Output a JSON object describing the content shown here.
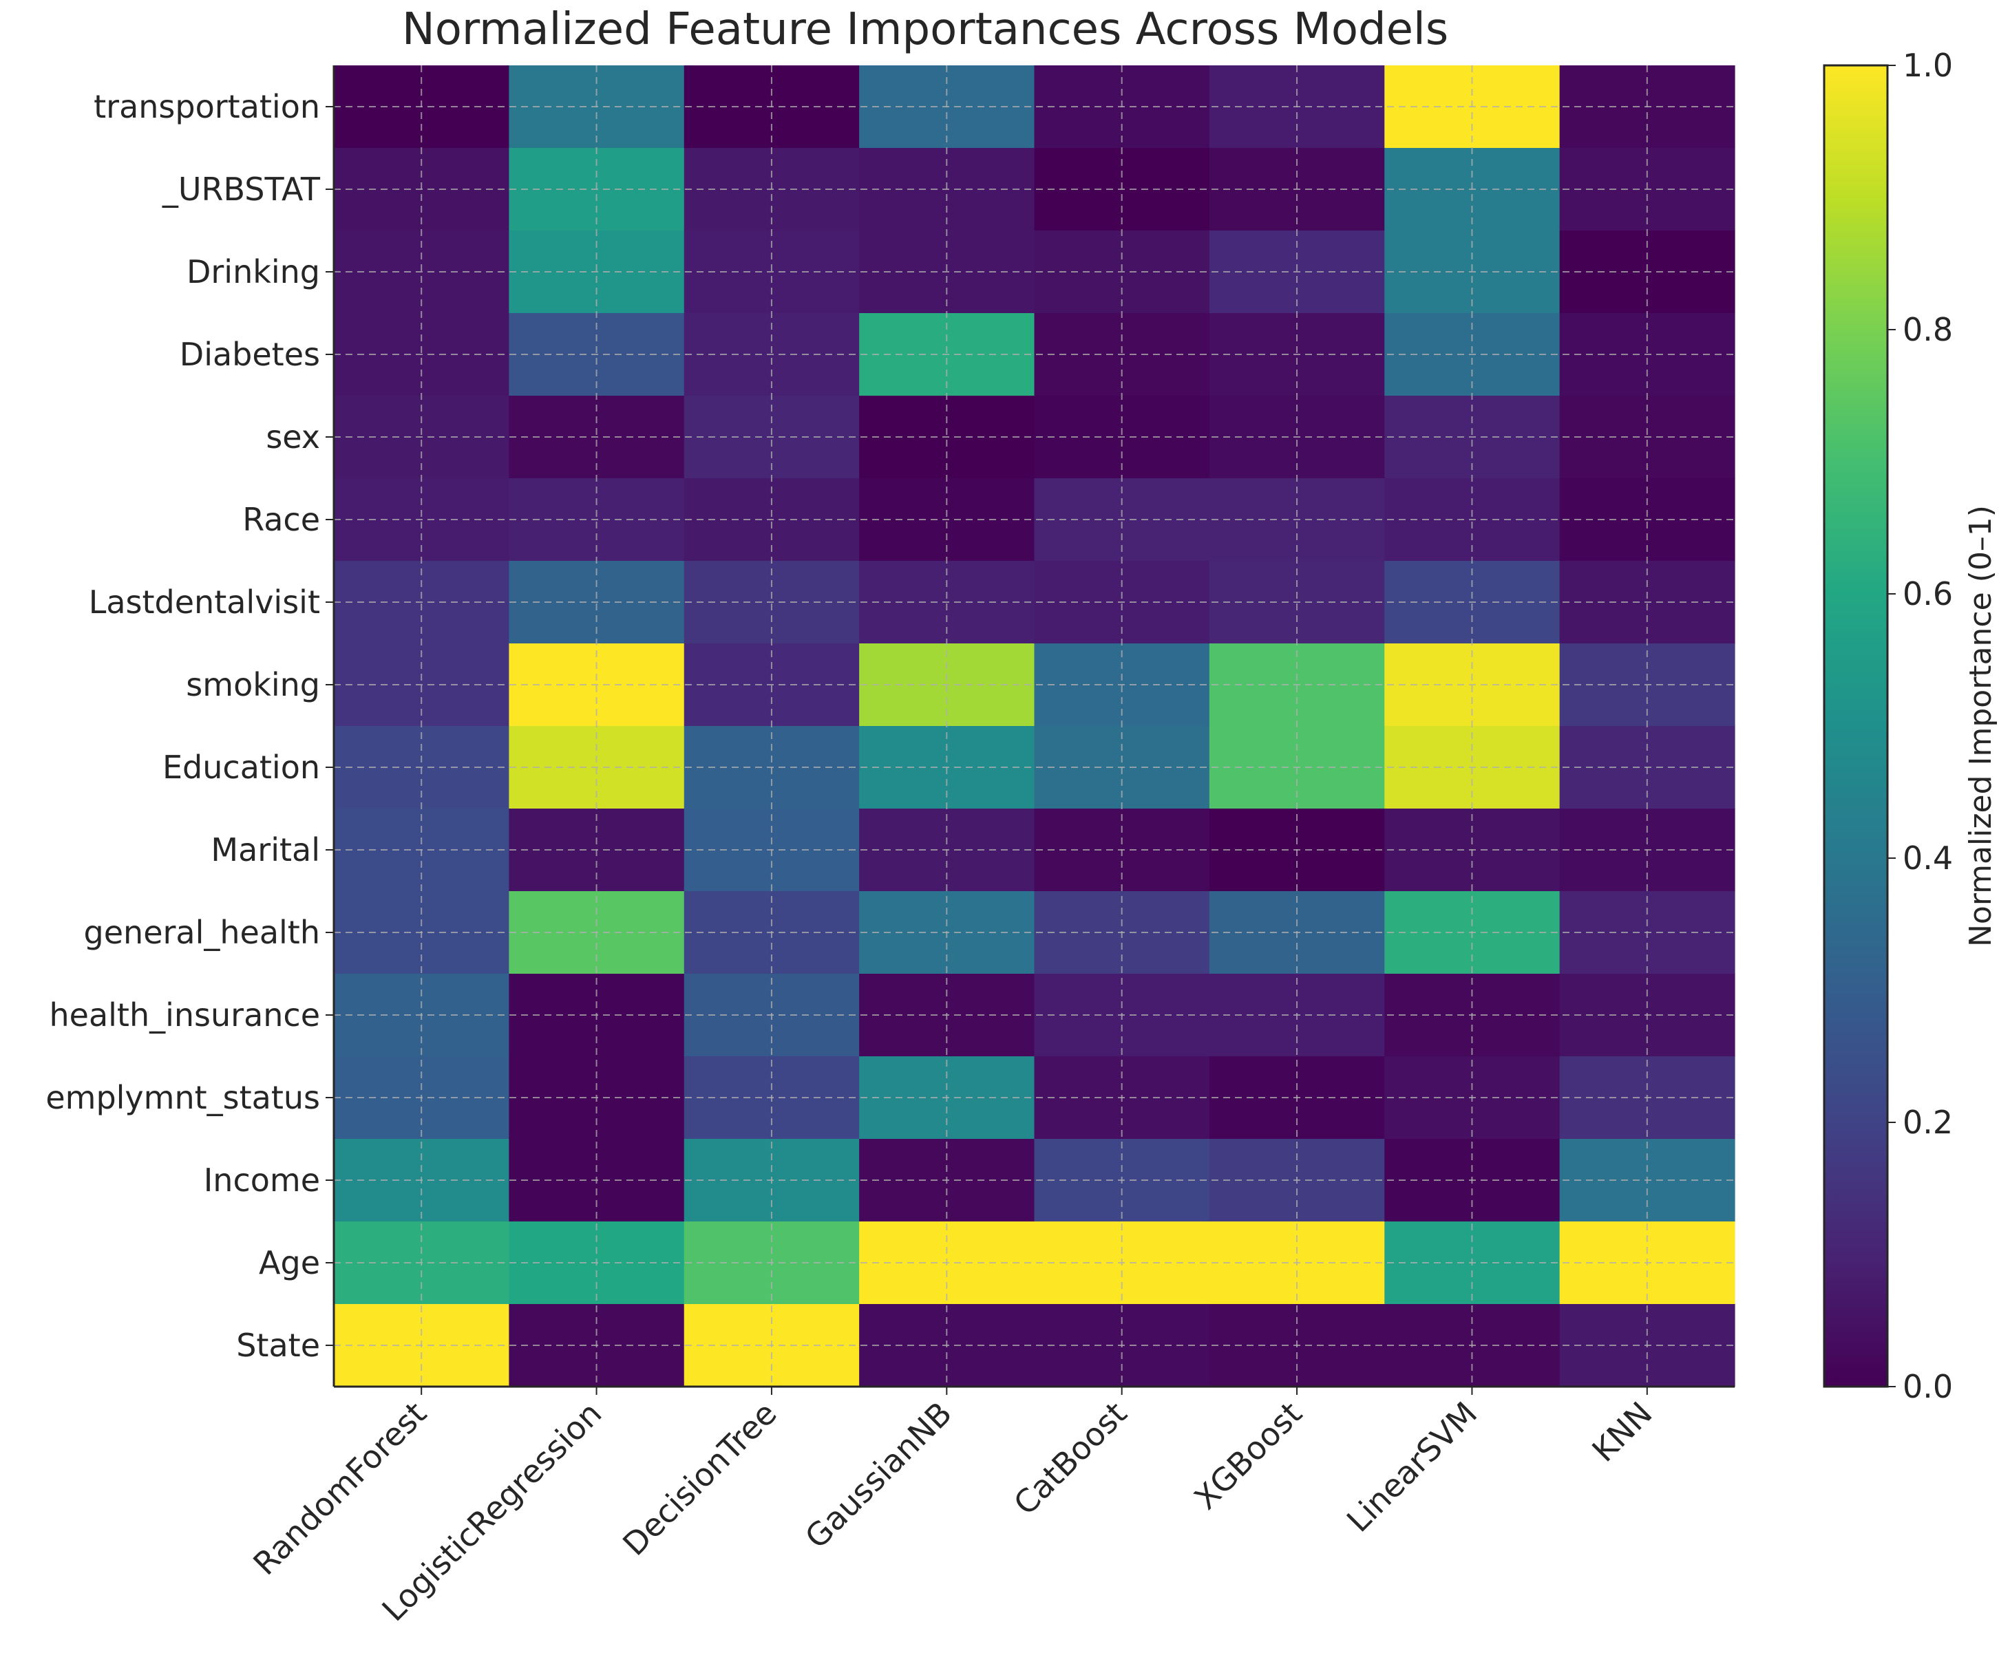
{
  "chart_data": {
    "type": "heatmap",
    "title": "Normalized Feature Importances Across Models",
    "xlabel": "",
    "ylabel": "",
    "colorbar_label": "Normalized Importance (0–1)",
    "colormap": "viridis",
    "clim": [
      0,
      1
    ],
    "colorbar_ticks": [
      "0.0",
      "0.2",
      "0.4",
      "0.6",
      "0.8",
      "1.0"
    ],
    "grid": true,
    "columns": [
      "RandomForest",
      "LogisticRegression",
      "DecisionTree",
      "GaussianNB",
      "CatBoost",
      "XGBoost",
      "LinearSVM",
      "KNN"
    ],
    "rows": [
      "transportation",
      "_URBSTAT",
      "Drinking",
      "Diabetes",
      "sex",
      "Race",
      "Lastdentalvisit",
      "smoking",
      "Education",
      "Marital",
      "general_health",
      "health_insurance",
      "emplymnt_status",
      "Income",
      "Age",
      "State"
    ],
    "values": [
      [
        0.0,
        0.4,
        0.0,
        0.35,
        0.03,
        0.08,
        1.0,
        0.02
      ],
      [
        0.05,
        0.56,
        0.07,
        0.06,
        0.0,
        0.02,
        0.42,
        0.04
      ],
      [
        0.06,
        0.52,
        0.08,
        0.06,
        0.05,
        0.12,
        0.42,
        0.0
      ],
      [
        0.06,
        0.26,
        0.09,
        0.62,
        0.02,
        0.04,
        0.36,
        0.03
      ],
      [
        0.07,
        0.02,
        0.11,
        0.0,
        0.01,
        0.03,
        0.1,
        0.02
      ],
      [
        0.08,
        0.09,
        0.07,
        0.01,
        0.1,
        0.1,
        0.08,
        0.01
      ],
      [
        0.15,
        0.32,
        0.16,
        0.09,
        0.08,
        0.11,
        0.21,
        0.06
      ],
      [
        0.15,
        1.0,
        0.12,
        0.86,
        0.35,
        0.72,
        0.98,
        0.17
      ],
      [
        0.22,
        0.93,
        0.31,
        0.48,
        0.37,
        0.72,
        0.94,
        0.11
      ],
      [
        0.23,
        0.05,
        0.3,
        0.07,
        0.02,
        0.0,
        0.05,
        0.03
      ],
      [
        0.23,
        0.74,
        0.21,
        0.38,
        0.18,
        0.32,
        0.63,
        0.1
      ],
      [
        0.31,
        0.01,
        0.28,
        0.02,
        0.08,
        0.08,
        0.02,
        0.05
      ],
      [
        0.3,
        0.01,
        0.21,
        0.47,
        0.04,
        0.01,
        0.04,
        0.14
      ],
      [
        0.48,
        0.01,
        0.48,
        0.02,
        0.21,
        0.18,
        0.01,
        0.38
      ],
      [
        0.63,
        0.6,
        0.72,
        1.0,
        1.0,
        1.0,
        0.58,
        1.0
      ],
      [
        1.0,
        0.02,
        1.0,
        0.03,
        0.03,
        0.02,
        0.02,
        0.07
      ]
    ]
  }
}
